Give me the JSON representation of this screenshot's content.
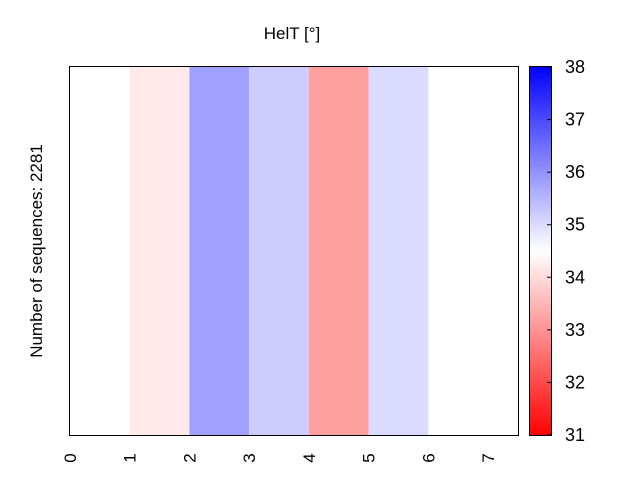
{
  "chart_data": {
    "type": "heatmap",
    "title": "HelT [°]",
    "ylabel": "Number of sequences: 2281",
    "xlabel": "",
    "x_ticks": [
      "0",
      "1",
      "2",
      "3",
      "4",
      "5",
      "6",
      "7"
    ],
    "columns": [
      {
        "from": 0,
        "to": 1,
        "value": 34.5
      },
      {
        "from": 1,
        "to": 2,
        "value": 34.2
      },
      {
        "from": 2,
        "to": 3,
        "value": 35.8
      },
      {
        "from": 3,
        "to": 4,
        "value": 35.2
      },
      {
        "from": 4,
        "to": 5,
        "value": 33.2
      },
      {
        "from": 5,
        "to": 6,
        "value": 35.0
      },
      {
        "from": 6,
        "to": 7.5,
        "value": 34.5
      }
    ],
    "xlim": [
      0,
      7.5
    ],
    "colorbar": {
      "min": 31,
      "max": 38,
      "ticks": [
        "31",
        "32",
        "33",
        "34",
        "35",
        "36",
        "37",
        "38"
      ],
      "colors": {
        "low": "#ff0000",
        "mid": "#ffffff",
        "high": "#0000ff"
      },
      "mid_value": 34.5
    }
  }
}
